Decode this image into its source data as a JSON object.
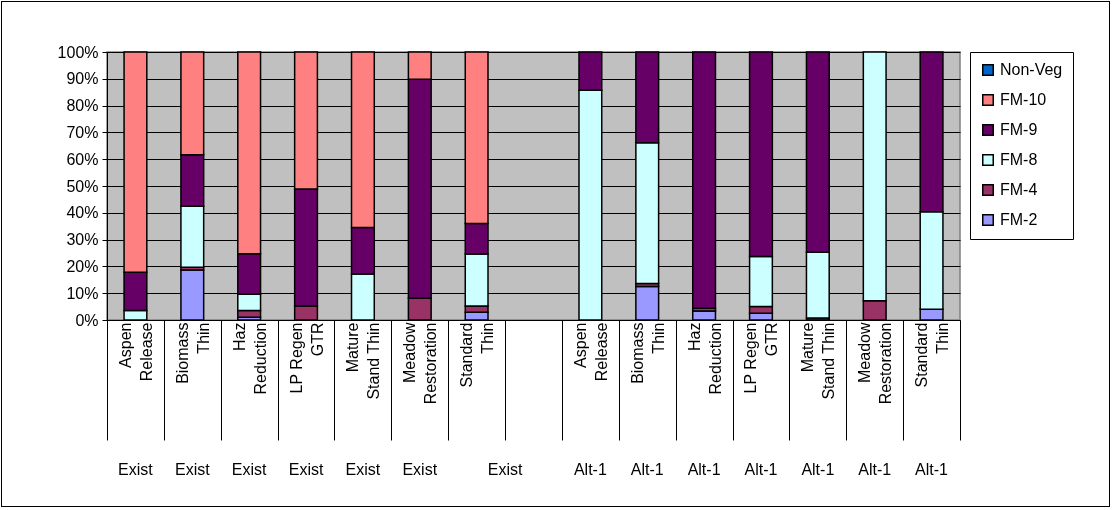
{
  "chart_data": {
    "type": "bar",
    "stacked": true,
    "categories": [
      "Aspen\nRelease",
      "Biomass\nThin",
      "Haz\nReduction",
      "LP Regen\nGTR",
      "Mature\nStand Thin",
      "Meadow\nRestoration",
      "Standard\nThin",
      null,
      "Aspen\nRelease",
      "Biomass\nThin",
      "Haz\nReduction",
      "LP Regen\nGTR",
      "Mature\nStand Thin",
      "Meadow\nRestoration",
      "Standard\nThin"
    ],
    "series": [
      {
        "name": "FM-2",
        "color": "#9999ff",
        "values": [
          0,
          18.7,
          1,
          0,
          0,
          0,
          2.9,
          null,
          0,
          12.5,
          3.4,
          2.5,
          0,
          0,
          4.0
        ]
      },
      {
        "name": "FM-4",
        "color": "#993366",
        "values": [
          0,
          1,
          2.5,
          5.2,
          0,
          8.1,
          2.3,
          null,
          0,
          1.1,
          1,
          2.5,
          0.7,
          7.2,
          0
        ]
      },
      {
        "name": "FM-8",
        "color": "#ccffff",
        "values": [
          3.5,
          22.7,
          6.1,
          0,
          17.2,
          0,
          19.4,
          null,
          85.7,
          52.5,
          0,
          18.7,
          24.6,
          92.8,
          36.4
        ]
      },
      {
        "name": "FM-9",
        "color": "#660066",
        "values": [
          14.3,
          19.3,
          15.1,
          43.7,
          17.3,
          81.7,
          11.4,
          null,
          14.3,
          33.9,
          95.6,
          76.3,
          74.7,
          0,
          59.6
        ]
      },
      {
        "name": "FM-10",
        "color": "#ff8080",
        "values": [
          82.2,
          38.3,
          75.3,
          51.1,
          65.5,
          10.2,
          64,
          null,
          0,
          0,
          0,
          0,
          0,
          0,
          0
        ]
      },
      {
        "name": "Non-Veg",
        "color": "#0066cc",
        "values": [
          0,
          0,
          0,
          0,
          0,
          0,
          0,
          null,
          0,
          0,
          0,
          0,
          0,
          0,
          0
        ]
      }
    ],
    "ylim": [
      0,
      100
    ],
    "yticks": [
      {
        "value": 0,
        "label": "0%"
      },
      {
        "value": 10,
        "label": "10%"
      },
      {
        "value": 20,
        "label": "20%"
      },
      {
        "value": 30,
        "label": "30%"
      },
      {
        "value": 40,
        "label": "40%"
      },
      {
        "value": 50,
        "label": "50%"
      },
      {
        "value": 60,
        "label": "60%"
      },
      {
        "value": 70,
        "label": "70%"
      },
      {
        "value": 80,
        "label": "80%"
      },
      {
        "value": 90,
        "label": "90%"
      },
      {
        "value": 100,
        "label": "100%"
      }
    ],
    "grid": "y",
    "legend": "right",
    "annotations": [
      "Exist",
      "Exist",
      "Exist",
      "Exist",
      "Exist",
      "Exist",
      "Exist",
      "Alt-1",
      "Alt-1",
      "Alt-1",
      "Alt-1",
      "Alt-1",
      "Alt-1",
      "Alt-1"
    ]
  }
}
